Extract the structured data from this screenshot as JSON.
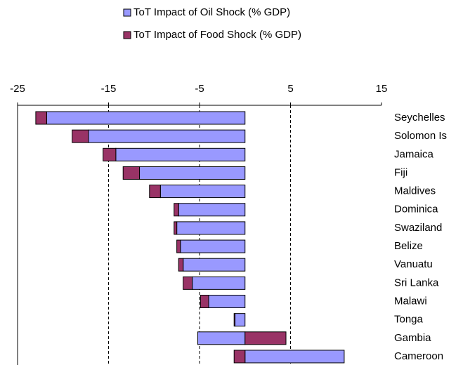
{
  "chart_data": {
    "type": "diverging-stacked-bar",
    "categories": [
      "Seychelles",
      "Solomon Is",
      "Jamaica",
      "Fiji",
      "Maldives",
      "Dominica",
      "Swaziland",
      "Belize",
      "Vanuatu",
      "Sri Lanka",
      "Malawi",
      "Tonga",
      "Gambia",
      "Cameroon"
    ],
    "series": [
      {
        "name": "ToT Impact of Oil Shock (% GDP)",
        "color": "#9999ff",
        "values": [
          -21.8,
          -17.2,
          -14.2,
          -11.6,
          -9.3,
          -7.3,
          -7.5,
          -7.1,
          -6.8,
          -5.8,
          -4.0,
          -1.1,
          -5.2,
          10.9
        ]
      },
      {
        "name": "ToT Impact of Food Shock (% GDP)",
        "color": "#993366",
        "values": [
          -1.2,
          -1.8,
          -1.4,
          -1.8,
          -1.2,
          -0.5,
          -0.3,
          -0.4,
          -0.5,
          -1.0,
          -0.9,
          -0.1,
          4.5,
          -1.2
        ]
      }
    ],
    "xlim": [
      -25,
      15
    ],
    "xticks": [
      -25,
      -15,
      -5,
      5,
      15
    ],
    "grid": true
  }
}
